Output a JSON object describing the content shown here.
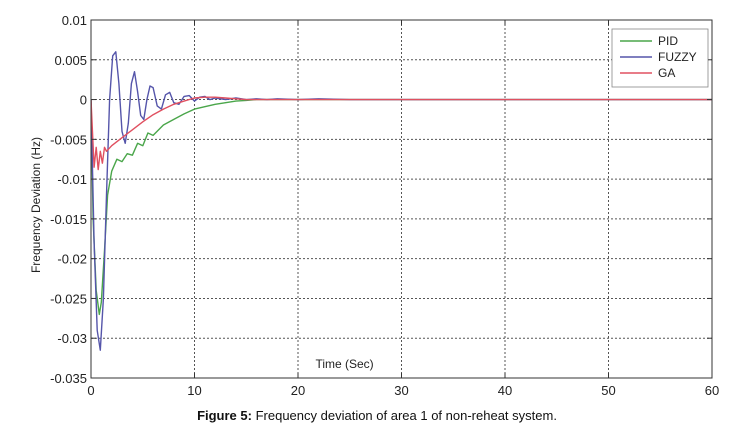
{
  "caption": {
    "label": "Figure 5:",
    "text": "Frequency deviation of area 1 of non-reheat system."
  },
  "chart_data": {
    "type": "line",
    "title": "",
    "xlabel": "Time (Sec)",
    "ylabel": "Frequency Deviation (Hz)",
    "xlim": [
      0,
      60
    ],
    "ylim": [
      -0.035,
      0.01
    ],
    "x_ticks": [
      0,
      10,
      20,
      30,
      40,
      50,
      60
    ],
    "x_tick_labels": [
      "0",
      "10",
      "20",
      "30",
      "40",
      "50",
      "60"
    ],
    "y_ticks": [
      0.01,
      0.005,
      0,
      -0.005,
      -0.01,
      -0.015,
      -0.02,
      -0.025,
      -0.03,
      -0.035
    ],
    "y_tick_labels": [
      "0.01",
      "0.005",
      "0",
      "-0.005",
      "-0.01",
      "-0.015",
      "-0.02",
      "-0.025",
      "-0.03",
      "-0.035"
    ],
    "grid": true,
    "legend_position": "top-right",
    "series": [
      {
        "name": "PID",
        "color": "#4aa64a",
        "x": [
          0,
          0.2,
          0.5,
          0.8,
          1.0,
          1.3,
          1.6,
          2.0,
          2.5,
          3.0,
          3.5,
          4.0,
          4.5,
          5.0,
          5.5,
          6.0,
          7.0,
          8.0,
          9.0,
          10.0,
          11.0,
          12.0,
          13.0,
          14.0,
          15.0,
          16.0,
          18.0,
          20.0,
          25.0,
          30.0,
          40.0,
          50.0,
          60.0
        ],
        "y": [
          0,
          -0.015,
          -0.024,
          -0.027,
          -0.0255,
          -0.019,
          -0.012,
          -0.009,
          -0.0075,
          -0.0078,
          -0.0068,
          -0.007,
          -0.0055,
          -0.0058,
          -0.0042,
          -0.0045,
          -0.0032,
          -0.0025,
          -0.0018,
          -0.0012,
          -0.0009,
          -0.0006,
          -0.0004,
          -0.0002,
          -0.0001,
          0,
          0,
          0,
          0,
          0,
          0,
          0,
          0
        ]
      },
      {
        "name": "FUZZY",
        "color": "#5555aa",
        "x": [
          0,
          0.3,
          0.6,
          0.9,
          1.2,
          1.5,
          1.8,
          2.1,
          2.4,
          2.7,
          3.0,
          3.3,
          3.6,
          3.9,
          4.2,
          4.5,
          4.8,
          5.1,
          5.4,
          5.7,
          6.0,
          6.4,
          6.8,
          7.2,
          7.6,
          8.0,
          8.5,
          9.0,
          9.5,
          10.0,
          10.5,
          11.0,
          11.5,
          12.0,
          13.0,
          14.0,
          15.0,
          16.0,
          17.0,
          18.0,
          20.0,
          22.0,
          25.0,
          30.0,
          40.0,
          50.0,
          60.0
        ],
        "y": [
          0,
          -0.018,
          -0.029,
          -0.0315,
          -0.025,
          -0.012,
          0.0,
          0.0055,
          0.006,
          0.002,
          -0.004,
          -0.0055,
          -0.003,
          0.002,
          0.0035,
          0.001,
          -0.002,
          -0.0025,
          0.0,
          0.0017,
          0.0015,
          -0.0008,
          -0.0012,
          0.0006,
          0.0009,
          -0.0004,
          -0.0006,
          0.0004,
          0.0005,
          -0.0002,
          0.0003,
          0.0004,
          0.0,
          0.0002,
          0.0,
          0.0002,
          0.0,
          0.0001,
          0,
          0.0001,
          0,
          0.0001,
          0,
          0,
          0,
          0,
          0
        ]
      },
      {
        "name": "GA",
        "color": "#e05060",
        "x": [
          0,
          0.3,
          0.5,
          0.7,
          0.9,
          1.1,
          1.3,
          1.5,
          2.0,
          3.0,
          4.0,
          5.0,
          6.0,
          7.0,
          8.0,
          9.0,
          10.0,
          11.0,
          12.0,
          13.0,
          14.0,
          15.0,
          17.0,
          20.0,
          25.0,
          30.0,
          40.0,
          50.0,
          60.0
        ],
        "y": [
          0,
          -0.0085,
          -0.006,
          -0.0088,
          -0.0065,
          -0.008,
          -0.006,
          -0.0065,
          -0.0058,
          -0.0048,
          -0.0038,
          -0.0028,
          -0.0019,
          -0.0012,
          -0.0006,
          -0.0002,
          0.0002,
          0.0003,
          0.0003,
          0.0002,
          0.0001,
          0,
          0,
          0,
          0,
          0,
          0,
          0,
          0
        ]
      }
    ]
  }
}
